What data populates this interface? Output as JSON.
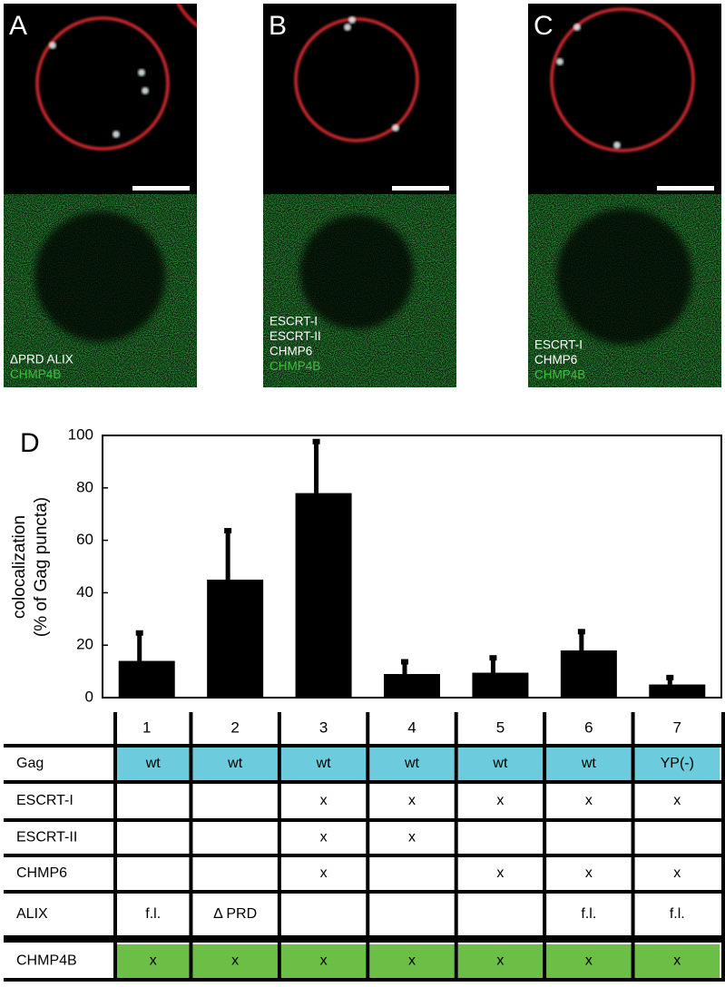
{
  "panels": [
    {
      "letter": "A",
      "labels": [
        {
          "text": "ΔPRD ALIX",
          "color": "#ffffff"
        },
        {
          "text": "CHMP4B",
          "color": "#3fbf3f"
        }
      ]
    },
    {
      "letter": "B",
      "labels": [
        {
          "text": "ESCRT-I",
          "color": "#ffffff"
        },
        {
          "text": "ESCRT-II",
          "color": "#ffffff"
        },
        {
          "text": "CHMP6",
          "color": "#ffffff"
        },
        {
          "text": "CHMP4B",
          "color": "#3fbf3f"
        }
      ]
    },
    {
      "letter": "C",
      "labels": [
        {
          "text": "ESCRT-I",
          "color": "#ffffff"
        },
        {
          "text": "CHMP6",
          "color": "#ffffff"
        },
        {
          "text": "CHMP4B",
          "color": "#3fbf3f"
        }
      ]
    }
  ],
  "chart_data": {
    "type": "bar",
    "panel_label": "D",
    "y_label": [
      "colocalization",
      "(% of Gag puncta)"
    ],
    "categories": [
      "1",
      "2",
      "3",
      "4",
      "5",
      "6",
      "7"
    ],
    "values": [
      14,
      45,
      78,
      9,
      9.5,
      18,
      5
    ],
    "errors": [
      11,
      19,
      20,
      5,
      6,
      7.5,
      3
    ],
    "color": "#000000",
    "ylim": [
      0,
      100
    ],
    "yticks": [
      0,
      20,
      40,
      60,
      80,
      100
    ]
  },
  "table": {
    "rows": [
      {
        "label": "Gag",
        "color": "#6ccbdc",
        "cells": [
          "wt",
          "wt",
          "wt",
          "wt",
          "wt",
          "wt",
          "YP(-)"
        ]
      },
      {
        "label": "ESCRT-I",
        "cells": [
          null,
          null,
          "x",
          "x",
          "x",
          "x",
          "x"
        ]
      },
      {
        "label": "ESCRT-II",
        "cells": [
          null,
          null,
          "x",
          "x",
          null,
          null,
          null
        ]
      },
      {
        "label": "CHMP6",
        "cells": [
          null,
          null,
          "x",
          null,
          "x",
          "x",
          "x"
        ]
      },
      {
        "label": "ALIX",
        "cells": [
          "f.l.",
          "Δ PRD",
          null,
          null,
          null,
          "f.l.",
          "f.l."
        ]
      },
      {
        "label": "CHMP4B",
        "color": "#6bbf47",
        "cells": [
          "x",
          "x",
          "x",
          "x",
          "x",
          "x",
          "x"
        ]
      }
    ]
  }
}
